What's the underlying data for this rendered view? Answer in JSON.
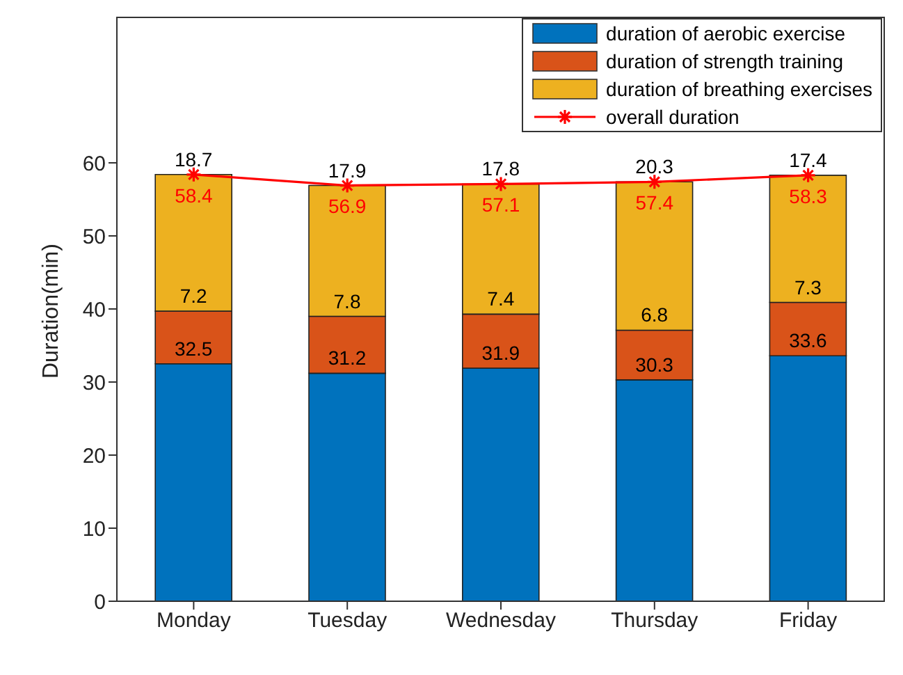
{
  "chart_data": {
    "type": "bar",
    "stacked": true,
    "ylabel": "Duration(min)",
    "categories": [
      "Monday",
      "Tuesday",
      "Wednesday",
      "Thursday",
      "Friday"
    ],
    "series": [
      {
        "name": "duration of aerobic exercise",
        "color": "#0072bd",
        "values": [
          32.5,
          31.2,
          31.9,
          30.3,
          33.6
        ]
      },
      {
        "name": "duration of strength training",
        "color": "#d95319",
        "values": [
          7.2,
          7.8,
          7.4,
          6.8,
          7.3
        ]
      },
      {
        "name": "duration of breathing exercises",
        "color": "#edb120",
        "values": [
          18.7,
          17.9,
          17.8,
          20.3,
          17.4
        ]
      },
      {
        "name": "overall duration",
        "type": "line",
        "color": "#ff0000",
        "marker": "cross",
        "values": [
          58.4,
          56.9,
          57.1,
          57.4,
          58.3
        ]
      }
    ],
    "ylim": [
      0,
      80
    ],
    "yticks": [
      0,
      10,
      20,
      30,
      40,
      50,
      60
    ],
    "data_labels": true,
    "legend": "top right"
  }
}
